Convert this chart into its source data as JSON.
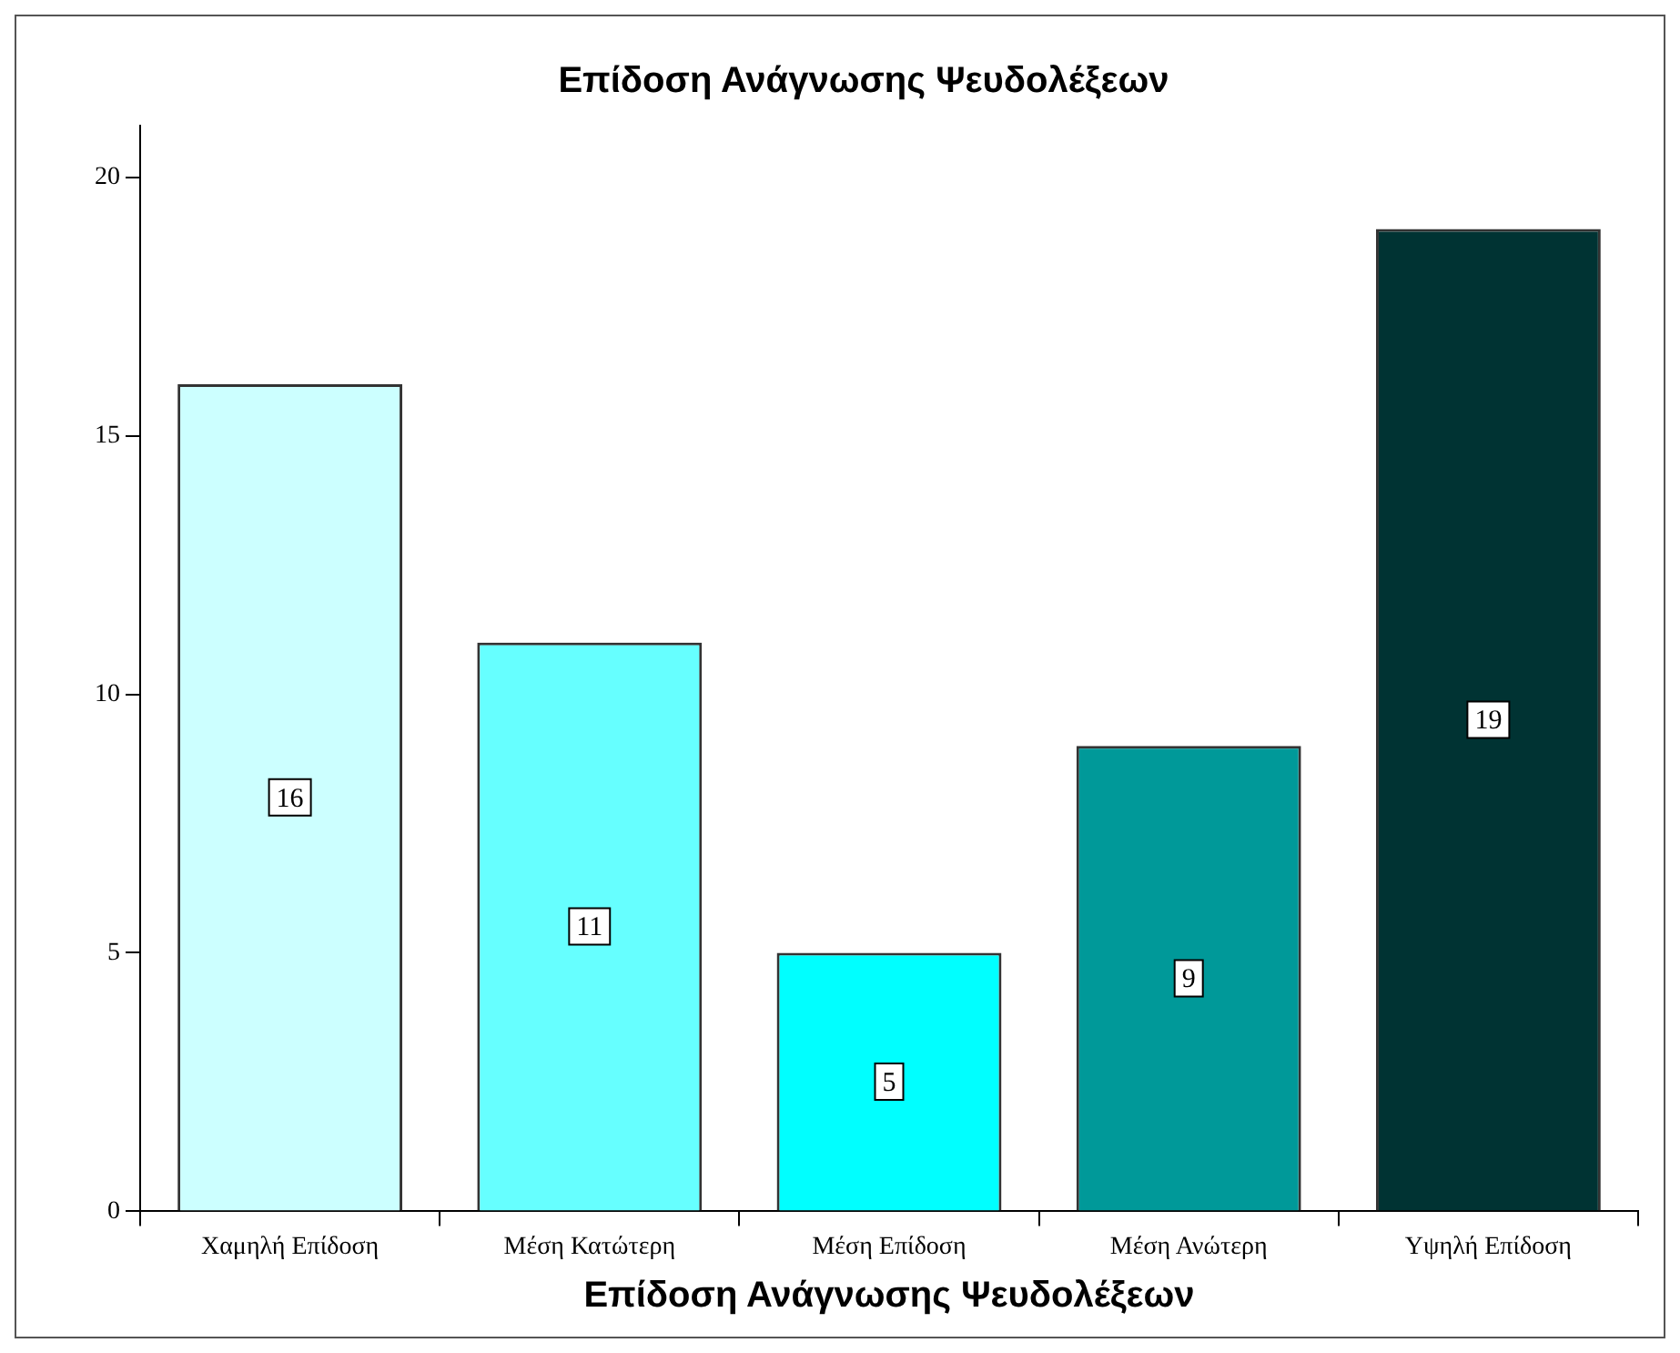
{
  "chart_data": {
    "type": "bar",
    "title": "Επίδοση Ανάγνωσης Ψευδολέξεων",
    "xlabel": "Επίδοση Ανάγνωσης Ψευδολέξεων",
    "categories": [
      "Χαμηλή Επίδοση",
      "Μέση Κατώτερη",
      "Μέση Επίδοση",
      "Μέση Ανώτερη",
      "Υψηλή Επίδοση"
    ],
    "values": [
      16,
      11,
      5,
      9,
      19
    ],
    "colors": [
      "#ccffff",
      "#66ffff",
      "#00ffff",
      "#009999",
      "#003333"
    ],
    "ylim": [
      0,
      21
    ],
    "yticks": [
      0,
      5,
      10,
      15,
      20
    ],
    "grid": false,
    "legend": false,
    "data_labels": true
  }
}
